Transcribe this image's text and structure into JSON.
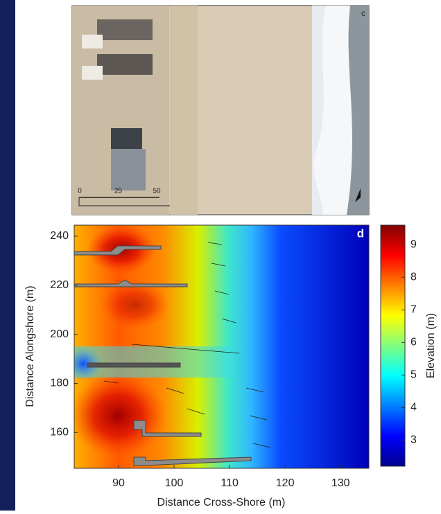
{
  "photo": {
    "label": "c",
    "scale_ticks": [
      0,
      25,
      50
    ]
  },
  "chart_data": {
    "type": "heatmap",
    "panel_label": "d",
    "xlabel": "Distance Cross-Shore (m)",
    "ylabel": "Distance Alongshore (m)",
    "xlim": [
      82,
      135.1
    ],
    "xticks": [
      90,
      100,
      110,
      120,
      130
    ],
    "ylim": [
      145.4,
      244.5
    ],
    "yticks": [
      160,
      180,
      200,
      220,
      240
    ],
    "colorbar": {
      "label": "Elevation (m)",
      "lim": [
        2.2,
        9.6
      ],
      "ticks": [
        3,
        4,
        5,
        6,
        7,
        8,
        9
      ],
      "colormap": "jet"
    }
  }
}
